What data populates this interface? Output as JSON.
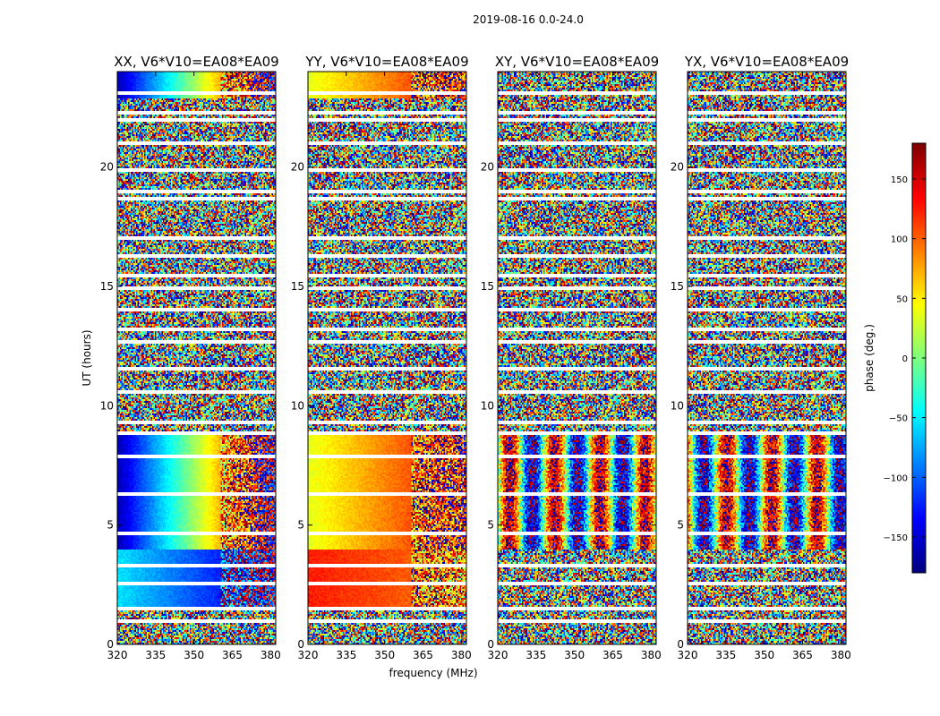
{
  "suptitle": "2019-08-16 0.0-24.0",
  "colors": {
    "jet": [
      "#00007f",
      "#0000ff",
      "#007fff",
      "#00ffff",
      "#7fff7f",
      "#ffff00",
      "#ff7f00",
      "#ff0000",
      "#7f0000"
    ]
  },
  "chart_data": {
    "type": "heatmap",
    "description_panels": "four phase waterfall panels sharing axes",
    "panels": [
      {
        "title": "XX, V6*V10=EA08*EA09",
        "pol": "XX"
      },
      {
        "title": "YY, V6*V10=EA08*EA09",
        "pol": "YY"
      },
      {
        "title": "XY, V6*V10=EA08*EA09",
        "pol": "XY"
      },
      {
        "title": "YX, V6*V10=EA08*EA09",
        "pol": "YX"
      }
    ],
    "xlabel": "frequency (MHz)",
    "ylabel": "UT (hours)",
    "xlim": [
      320,
      382
    ],
    "ylim": [
      0,
      24
    ],
    "xticks": [
      320,
      335,
      350,
      365,
      380
    ],
    "yticks": [
      0,
      5,
      10,
      15,
      20
    ],
    "colorbar": {
      "label": "phase (deg.)",
      "range": [
        -180,
        180
      ],
      "ticks": [
        -150,
        -100,
        -50,
        0,
        50,
        100,
        150
      ],
      "tick_labels": [
        "−150",
        "−100",
        "−50",
        "0",
        "50",
        "100",
        "150"
      ],
      "colormap": "jet"
    },
    "gaps_ut": [
      0.95,
      1.5,
      2.55,
      3.3,
      4.65,
      6.3,
      7.85,
      8.85,
      9.3,
      10.55,
      11.55,
      12.7,
      13.2,
      14.0,
      14.95,
      15.45,
      16.3,
      17.0,
      18.7,
      19.0,
      19.85,
      21.0,
      22.0,
      22.3,
      23.1
    ]
  }
}
